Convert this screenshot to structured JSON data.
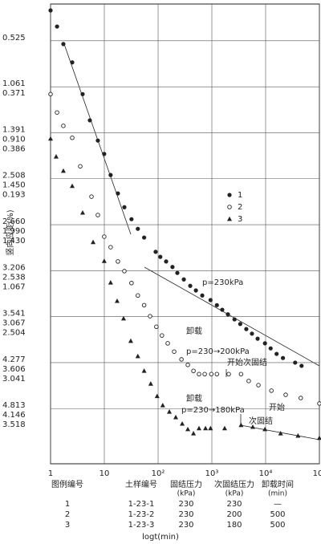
{
  "chart_data": {
    "type": "scatter",
    "ylabel": "竖向应变(%)",
    "xlabel": "logt(min)",
    "log_x": true,
    "xlim": [
      1,
      100000
    ],
    "xticks": [
      1,
      10,
      {
        "value": 100,
        "label": "10²"
      },
      {
        "value": 1000,
        "label": "10³"
      },
      {
        "value": 10000,
        "label": "10⁴"
      },
      {
        "value": 100000,
        "label": "10⁵"
      }
    ],
    "ylim": [
      0.2,
      10.2
    ],
    "y_inverted": true,
    "grid": true,
    "yticks": [
      1,
      2,
      3,
      4,
      5,
      6,
      7,
      8,
      9
    ],
    "ytick_label_rows": [
      [
        "0.525"
      ],
      [
        "1.061",
        "0.371"
      ],
      [
        "1.391",
        "0.910",
        "0.386"
      ],
      [
        "2.508",
        "1.450",
        "0.193"
      ],
      [
        "2.660",
        "1.990",
        "1.430"
      ],
      [
        "3.206",
        "2.538",
        "1.067"
      ],
      [
        "3.541",
        "3.067",
        "2.504"
      ],
      [
        "4.277",
        "3.606",
        "3.041"
      ],
      [
        "4.813",
        "4.146",
        "3.518"
      ]
    ],
    "series": [
      {
        "name": "1",
        "marker": "filled",
        "color": "#222",
        "x": [
          1,
          1.32,
          1.73,
          2.53,
          3.95,
          5.38,
          7.58,
          9.96,
          13.1,
          17.9,
          23.6,
          32,
          42,
          55,
          90,
          110,
          141,
          185,
          228,
          301,
          396,
          505,
          663,
          944,
          1240,
          1560,
          1990,
          2640,
          3370,
          4370,
          5570,
          7100,
          9720,
          12400,
          16000,
          21000,
          35400,
          46600
        ],
        "values": [
          0.34,
          0.69,
          1.07,
          1.47,
          2.16,
          2.73,
          3.17,
          3.46,
          3.92,
          4.32,
          4.62,
          4.88,
          5.09,
          5.28,
          5.59,
          5.7,
          5.8,
          5.92,
          6.05,
          6.19,
          6.33,
          6.43,
          6.54,
          6.64,
          6.75,
          6.85,
          6.95,
          7.06,
          7.16,
          7.27,
          7.37,
          7.48,
          7.58,
          7.69,
          7.81,
          7.9,
          8.0,
          8.07
        ]
      },
      {
        "name": "2",
        "marker": "open",
        "color": "#222",
        "x": [
          1,
          1.32,
          1.73,
          2.53,
          3.57,
          5.77,
          7.58,
          9.96,
          13.1,
          17.9,
          23.6,
          32,
          42,
          55,
          71,
          93,
          118,
          151,
          199,
          272,
          357,
          455,
          577,
          736,
          977,
          1240,
          2060,
          3490,
          4850,
          7350,
          12800,
          23600,
          45000,
          100000
        ],
        "values": [
          2.16,
          2.56,
          2.85,
          3.11,
          3.73,
          4.39,
          4.79,
          5.26,
          5.49,
          5.8,
          6.01,
          6.27,
          6.54,
          6.75,
          6.99,
          7.22,
          7.41,
          7.58,
          7.76,
          7.93,
          8.05,
          8.18,
          8.25,
          8.25,
          8.25,
          8.25,
          8.25,
          8.25,
          8.4,
          8.49,
          8.61,
          8.7,
          8.77,
          8.89
        ]
      },
      {
        "name": "3",
        "marker": "triangle",
        "color": "#222",
        "x": [
          1,
          1.27,
          1.73,
          2.53,
          3.95,
          6.19,
          9.96,
          13.1,
          17.3,
          22.8,
          31,
          42,
          55,
          73,
          96,
          122,
          162,
          213,
          281,
          357,
          455,
          577,
          762,
          944,
          1730,
          3490,
          5770,
          9720,
          19000,
          40000,
          100000
        ],
        "values": [
          3.13,
          3.52,
          3.83,
          4.16,
          4.74,
          5.38,
          5.79,
          6.26,
          6.66,
          7.04,
          7.53,
          7.86,
          8.18,
          8.46,
          8.73,
          8.93,
          9.07,
          9.19,
          9.33,
          9.45,
          9.54,
          9.43,
          9.43,
          9.43,
          9.43,
          9.36,
          9.4,
          9.45,
          9.54,
          9.59,
          9.64
        ]
      }
    ],
    "annotations": [
      "p=230kPa",
      "卸载",
      "p=230→200kPa",
      "开始次固结",
      "卸载",
      "p=230→180kPa",
      "开始",
      "次固结"
    ]
  },
  "table": {
    "headers": [
      "图例编号",
      "土样编号",
      "固结压力",
      "次固结压力",
      "卸载时间"
    ],
    "units": [
      "(kPa)",
      "(kPa)",
      "(min)"
    ],
    "rows": [
      [
        "1",
        "1-23-1",
        "230",
        "230",
        "—"
      ],
      [
        "2",
        "1-23-2",
        "230",
        "200",
        "500"
      ],
      [
        "3",
        "1-23-3",
        "230",
        "180",
        "500"
      ]
    ]
  }
}
